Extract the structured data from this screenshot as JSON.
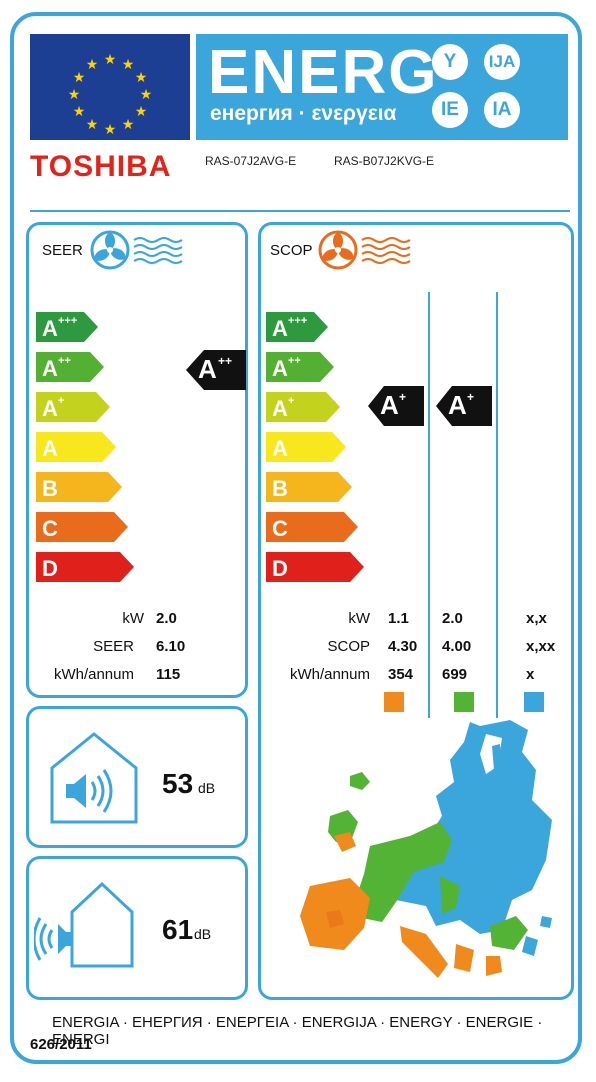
{
  "header": {
    "energy_word": "ENERG",
    "energy_sub": "енергия · ενεργεια",
    "suffixes": [
      "Y",
      "IJA",
      "IE",
      "IA"
    ],
    "brand": "TOSHIBA",
    "models": [
      "RAS-07J2AVG-E",
      "RAS-B07J2KVG-E"
    ]
  },
  "scale": {
    "classes": [
      {
        "base": "A",
        "sup": "+++",
        "color": "#2e9a3f"
      },
      {
        "base": "A",
        "sup": "++",
        "color": "#53b033"
      },
      {
        "base": "A",
        "sup": "+",
        "color": "#c3d21c"
      },
      {
        "base": "A",
        "sup": "",
        "color": "#f8e71c"
      },
      {
        "base": "B",
        "sup": "",
        "color": "#f5b51c"
      },
      {
        "base": "C",
        "sup": "",
        "color": "#e96c1d"
      },
      {
        "base": "D",
        "sup": "",
        "color": "#e0201b"
      }
    ]
  },
  "seer": {
    "header": "SEER",
    "rating": {
      "base": "A",
      "sup": "++"
    },
    "rows": [
      {
        "label": "kW",
        "value": "2.0"
      },
      {
        "label": "SEER",
        "value": "6.10"
      },
      {
        "label": "kWh/annum",
        "value": "115"
      }
    ]
  },
  "scop": {
    "header": "SCOP",
    "ratings": [
      {
        "base": "A",
        "sup": "+"
      },
      {
        "base": "A",
        "sup": "+"
      }
    ],
    "labels": [
      "kW",
      "SCOP",
      "kWh/annum"
    ],
    "columns": [
      {
        "values": [
          "1.1",
          "4.30",
          "354"
        ],
        "color": "#f08a1c"
      },
      {
        "values": [
          "2.0",
          "4.00",
          "699"
        ],
        "color": "#52b335"
      },
      {
        "values": [
          "x,x",
          "x,xx",
          "x"
        ],
        "color": "#3aa6dc"
      }
    ]
  },
  "noise": {
    "indoor": {
      "value": "53",
      "unit": "dB"
    },
    "outdoor": {
      "value": "61",
      "unit": "dB"
    }
  },
  "footer": {
    "languages": "ENERGIA · ЕНЕРГИЯ · ΕΝΕΡΓΕΙΑ · ENERGIJA · ENERGY · ENERGIE · ENERGI",
    "regulation": "626/2011"
  }
}
